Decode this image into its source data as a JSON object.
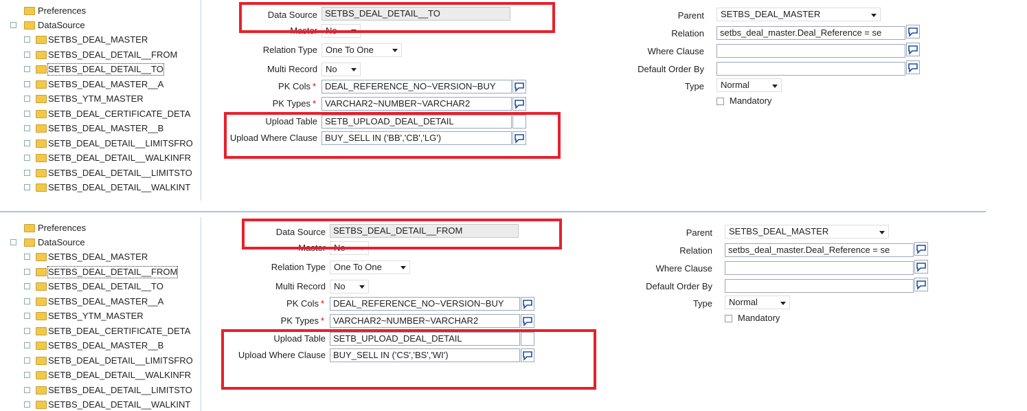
{
  "panels": [
    {
      "tree": {
        "top_items": [
          "Preferences",
          "DataSource"
        ],
        "datasource_children": [
          "SETBS_DEAL_MASTER",
          "SETBS_DEAL_DETAIL__FROM",
          "SETBS_DEAL_DETAIL__TO",
          "SETBS_DEAL_MASTER__A",
          "SETBS_YTM_MASTER",
          "SETB_DEAL_CERTIFICATE_DETA",
          "SETBS_DEAL_MASTER__B",
          "SETB_DEAL_DETAIL__LIMITSFRO",
          "SETB_DEAL_DETAIL__WALKINFR",
          "SETBS_DEAL_DETAIL__LIMITSTO",
          "SETBS_DEAL_DETAIL__WALKINT"
        ]
      },
      "form": {
        "left": [
          {
            "label": "Data Source",
            "value": "SETBS_DEAL_DETAIL__TO"
          },
          {
            "label": "Master",
            "value": "No"
          },
          {
            "label": "Relation Type",
            "value": "One To One"
          },
          {
            "label": "Multi Record",
            "value": "No"
          },
          {
            "label": "PK Cols",
            "marker": "*",
            "value": "DEAL_REFERENCE_NO~VERSION~BUY"
          },
          {
            "label": "PK Types",
            "marker": "*",
            "value": "VARCHAR2~NUMBER~VARCHAR2"
          },
          {
            "label": "Upload Table",
            "value": "SETB_UPLOAD_DEAL_DETAIL"
          },
          {
            "label": "Upload Where Clause",
            "value": "BUY_SELL IN ('BB','CB','LG')"
          }
        ],
        "right": [
          {
            "label": "Parent",
            "value": "SETBS_DEAL_MASTER"
          },
          {
            "label": "Relation",
            "value": "setbs_deal_master.Deal_Reference = se"
          },
          {
            "label": "Where Clause"
          },
          {
            "label": "Default Order By"
          },
          {
            "label": "Type",
            "value": "Normal"
          },
          {
            "label": "Mandatory"
          }
        ]
      }
    },
    {
      "tree": {
        "top_items": [
          "Preferences",
          "DataSource"
        ],
        "datasource_children": [
          "SETBS_DEAL_MASTER",
          "SETBS_DEAL_DETAIL__FROM",
          "SETBS_DEAL_DETAIL__TO",
          "SETBS_DEAL_MASTER__A",
          "SETBS_YTM_MASTER",
          "SETB_DEAL_CERTIFICATE_DETA",
          "SETBS_DEAL_MASTER__B",
          "SETB_DEAL_DETAIL__LIMITSFRO",
          "SETB_DEAL_DETAIL__WALKINFR",
          "SETBS_DEAL_DETAIL__LIMITSTO",
          "SETBS_DEAL_DETAIL__WALKINT"
        ]
      },
      "form": {
        "left": [
          {
            "label": "Data Source",
            "value": "SETBS_DEAL_DETAIL__FROM"
          },
          {
            "label": "Master",
            "value": "No"
          },
          {
            "label": "Relation Type",
            "value": "One To One"
          },
          {
            "label": "Multi Record",
            "value": "No"
          },
          {
            "label": "PK Cols",
            "marker": "*",
            "value": "DEAL_REFERENCE_NO~VERSION~BUY"
          },
          {
            "label": "PK Types",
            "marker": "*",
            "value": "VARCHAR2~NUMBER~VARCHAR2"
          },
          {
            "label": "Upload Table",
            "value": "SETB_UPLOAD_DEAL_DETAIL"
          },
          {
            "label": "Upload Where Clause",
            "value": "BUY_SELL IN ('CS','BS','WI')"
          }
        ],
        "right": [
          {
            "label": "Parent",
            "value": "SETBS_DEAL_MASTER"
          },
          {
            "label": "Relation",
            "value": "setbs_deal_master.Deal_Reference = se"
          },
          {
            "label": "Where Clause"
          },
          {
            "label": "Default Order By"
          },
          {
            "label": "Type",
            "value": "Normal"
          },
          {
            "label": "Mandatory"
          }
        ]
      }
    }
  ]
}
